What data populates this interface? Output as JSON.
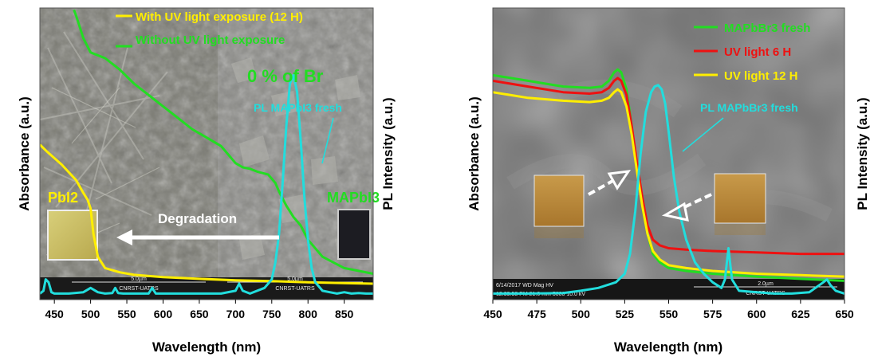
{
  "colors": {
    "uv12": "#ffee00",
    "no_uv": "#22dd22",
    "pl": "#22dddd",
    "uv6": "#ee1111",
    "arrow": "#ffffff"
  },
  "chart_data": [
    {
      "type": "line",
      "xlabel": "Wavelength (nm)",
      "ylabel_left": "Absorbance (a.u.)",
      "ylabel_right": "PL Intensity (a.u.)",
      "xlim": [
        430,
        890
      ],
      "ylim": [
        0,
        1
      ],
      "xticks": [
        450,
        500,
        550,
        600,
        650,
        700,
        750,
        800,
        850
      ],
      "legend_position": "top-left",
      "grid": false,
      "series": [
        {
          "name": "With UV light exposure (12 H)",
          "color_key": "uv12",
          "x": [
            430,
            440,
            460,
            480,
            490,
            496,
            500,
            504,
            510,
            520,
            540,
            560,
            600,
            650,
            700,
            750,
            800,
            850,
            890
          ],
          "y": [
            0.535,
            0.51,
            0.465,
            0.41,
            0.365,
            0.34,
            0.31,
            0.22,
            0.14,
            0.1,
            0.085,
            0.076,
            0.068,
            0.062,
            0.057,
            0.054,
            0.05,
            0.047,
            0.045
          ]
        },
        {
          "name": "Without UV light exposure",
          "color_key": "no_uv",
          "x": [
            477,
            480,
            485,
            490,
            500,
            520,
            540,
            560,
            580,
            600,
            620,
            640,
            660,
            680,
            690,
            700,
            710,
            720,
            730,
            745,
            755,
            760,
            770,
            780,
            790,
            800,
            820,
            850,
            890
          ],
          "y": [
            1.01,
            0.99,
            0.95,
            0.91,
            0.86,
            0.84,
            0.8,
            0.75,
            0.71,
            0.67,
            0.63,
            0.59,
            0.56,
            0.53,
            0.5,
            0.47,
            0.455,
            0.45,
            0.44,
            0.43,
            0.4,
            0.37,
            0.32,
            0.28,
            0.25,
            0.2,
            0.14,
            0.1,
            0.08
          ]
        },
        {
          "name": "PL MAPbI3 fresh",
          "color_key": "pl",
          "x": [
            430,
            435,
            438,
            442,
            446,
            450,
            470,
            490,
            500,
            510,
            520,
            530,
            534,
            538,
            545,
            560,
            580,
            585,
            590,
            600,
            620,
            640,
            660,
            680,
            700,
            705,
            710,
            720,
            740,
            750,
            755,
            760,
            765,
            770,
            775,
            780,
            785,
            790,
            795,
            800,
            805,
            810,
            820,
            830,
            840,
            850,
            860,
            870,
            880,
            890
          ],
          "y": [
            0.01,
            0.02,
            0.06,
            0.05,
            0.015,
            0.01,
            0.01,
            0.015,
            0.03,
            0.015,
            0.01,
            0.012,
            0.03,
            0.012,
            0.01,
            0.01,
            0.01,
            0.03,
            0.01,
            0.01,
            0.01,
            0.01,
            0.01,
            0.01,
            0.02,
            0.045,
            0.02,
            0.01,
            0.03,
            0.06,
            0.12,
            0.22,
            0.4,
            0.6,
            0.75,
            0.78,
            0.72,
            0.55,
            0.35,
            0.2,
            0.1,
            0.05,
            0.02,
            0.015,
            0.01,
            0.015,
            0.01,
            0.012,
            0.01,
            0.01
          ]
        }
      ],
      "annotations": [
        "0 % of Br",
        "PL MAPbI3 fresh",
        "PbI2",
        "MAPbI3",
        "Degradation"
      ]
    },
    {
      "type": "line",
      "xlabel": "Wavelength (nm)",
      "ylabel_left": "Absorbance (a.u.)",
      "ylabel_right": "PL Intensity (a.u.)",
      "xlim": [
        450,
        650
      ],
      "ylim": [
        0,
        1
      ],
      "xticks": [
        450,
        475,
        500,
        525,
        550,
        575,
        600,
        625,
        650
      ],
      "legend_position": "top-right",
      "grid": false,
      "series": [
        {
          "name": "MAPbBr3 fresh",
          "color_key": "no_uv",
          "x": [
            450,
            470,
            490,
            505,
            512,
            516,
            519,
            521,
            523,
            526,
            529,
            532,
            535,
            538,
            541,
            545,
            550,
            560,
            575,
            600,
            625,
            650
          ],
          "y": [
            0.78,
            0.76,
            0.74,
            0.735,
            0.74,
            0.76,
            0.79,
            0.8,
            0.79,
            0.73,
            0.6,
            0.45,
            0.32,
            0.22,
            0.15,
            0.12,
            0.1,
            0.09,
            0.08,
            0.07,
            0.062,
            0.055
          ]
        },
        {
          "name": "UV light 6 H",
          "color_key": "uv6",
          "x": [
            450,
            470,
            490,
            505,
            512,
            516,
            519,
            521,
            523,
            526,
            529,
            532,
            535,
            538,
            541,
            545,
            550,
            560,
            575,
            600,
            625,
            650
          ],
          "y": [
            0.76,
            0.74,
            0.72,
            0.715,
            0.72,
            0.735,
            0.76,
            0.77,
            0.76,
            0.71,
            0.6,
            0.47,
            0.35,
            0.25,
            0.2,
            0.18,
            0.17,
            0.165,
            0.16,
            0.155,
            0.15,
            0.15
          ]
        },
        {
          "name": "UV light 12 H",
          "color_key": "uv12",
          "x": [
            450,
            470,
            490,
            505,
            512,
            516,
            519,
            521,
            523,
            526,
            529,
            532,
            535,
            538,
            541,
            545,
            550,
            560,
            575,
            600,
            625,
            650
          ],
          "y": [
            0.72,
            0.7,
            0.69,
            0.685,
            0.69,
            0.7,
            0.72,
            0.73,
            0.72,
            0.67,
            0.57,
            0.44,
            0.32,
            0.22,
            0.16,
            0.13,
            0.11,
            0.1,
            0.09,
            0.08,
            0.075,
            0.07
          ]
        },
        {
          "name": "PL MAPbBr3 fresh",
          "color_key": "pl",
          "x": [
            450,
            470,
            490,
            500,
            510,
            520,
            525,
            528,
            531,
            534,
            537,
            540,
            542,
            544,
            546,
            548,
            550,
            553,
            556,
            560,
            565,
            570,
            575,
            580,
            582,
            584,
            586,
            590,
            600,
            610,
            620,
            630,
            638,
            640,
            642,
            645,
            650
          ],
          "y": [
            0.01,
            0.01,
            0.012,
            0.02,
            0.03,
            0.05,
            0.08,
            0.15,
            0.3,
            0.5,
            0.65,
            0.72,
            0.74,
            0.745,
            0.73,
            0.68,
            0.58,
            0.42,
            0.3,
            0.2,
            0.12,
            0.08,
            0.05,
            0.03,
            0.06,
            0.17,
            0.06,
            0.02,
            0.015,
            0.01,
            0.01,
            0.015,
            0.05,
            0.06,
            0.04,
            0.02,
            0.01
          ]
        }
      ],
      "annotations": [
        "PL MAPbBr3 fresh"
      ]
    }
  ],
  "panel1": {
    "legend": [
      "With UV light exposure (12 H)",
      "Without UV light exposure"
    ],
    "ann_br": "0 % of Br",
    "ann_pl": "PL MAPbI3 fresh",
    "ann_pbi2": "PbI2",
    "ann_mapbi3": "MAPbI3",
    "ann_degradation": "Degradation",
    "scalebar_left": "5.0µm",
    "scalebar_left_sub": "CNRST-UATRS",
    "scalebar_right": "5.0µm",
    "scalebar_right_sub": "CNRST-UATRS"
  },
  "panel2": {
    "legend": [
      "MAPbBr3 fresh",
      "UV light 6 H",
      "UV light 12 H"
    ],
    "ann_pl": "PL MAPbBr3 fresh",
    "sem_info": "6/14/2017   WD   Mag   HV",
    "sem_info2": "12:39:58 PM  21.0 mm  5000  10.0 kV",
    "scalebar": "2.0µm",
    "scalebar_sub": "CNRST-UATRS"
  }
}
